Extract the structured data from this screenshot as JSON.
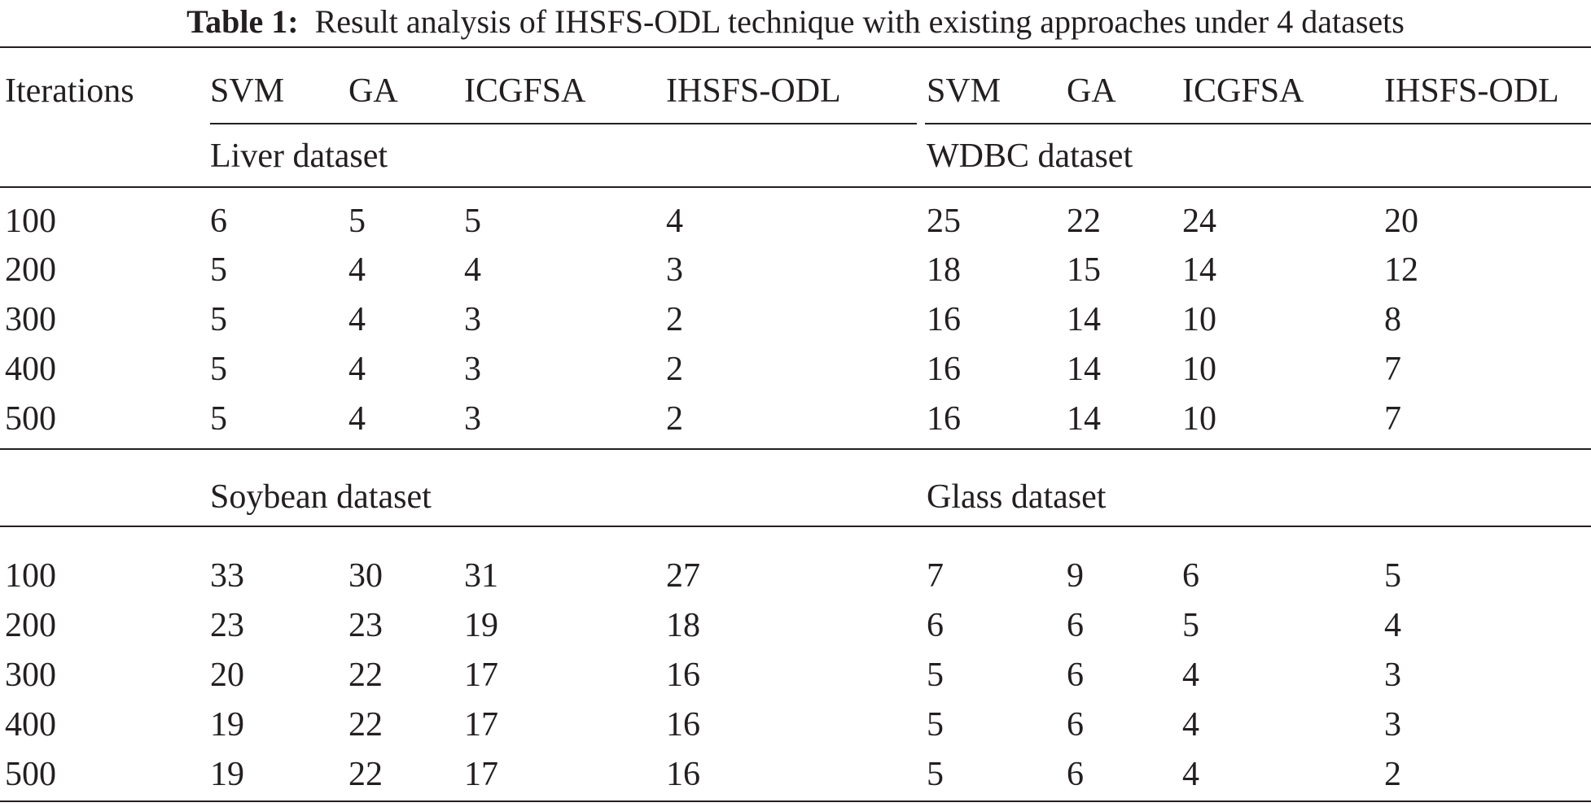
{
  "caption": {
    "label": "Table 1:",
    "text": "Result analysis of IHSFS-ODL technique with existing approaches under 4 datasets"
  },
  "header": {
    "first": "Iterations",
    "columns": [
      "SVM",
      "GA",
      "ICGFSA",
      "IHSFS-ODL",
      "SVM",
      "GA",
      "ICGFSA",
      "IHSFS-ODL"
    ]
  },
  "groups": [
    {
      "left_title": "Liver dataset",
      "right_title": "WDBC dataset",
      "rows": [
        [
          "100",
          "6",
          "5",
          "5",
          "4",
          "25",
          "22",
          "24",
          "20"
        ],
        [
          "200",
          "5",
          "4",
          "4",
          "3",
          "18",
          "15",
          "14",
          "12"
        ],
        [
          "300",
          "5",
          "4",
          "3",
          "2",
          "16",
          "14",
          "10",
          "8"
        ],
        [
          "400",
          "5",
          "4",
          "3",
          "2",
          "16",
          "14",
          "10",
          "7"
        ],
        [
          "500",
          "5",
          "4",
          "3",
          "2",
          "16",
          "14",
          "10",
          "7"
        ]
      ]
    },
    {
      "left_title": "Soybean dataset",
      "right_title": "Glass dataset",
      "rows": [
        [
          "100",
          "33",
          "30",
          "31",
          "27",
          "7",
          "9",
          "6",
          "5"
        ],
        [
          "200",
          "23",
          "23",
          "19",
          "18",
          "6",
          "6",
          "5",
          "4"
        ],
        [
          "300",
          "20",
          "22",
          "17",
          "16",
          "5",
          "6",
          "4",
          "3"
        ],
        [
          "400",
          "19",
          "22",
          "17",
          "16",
          "5",
          "6",
          "4",
          "3"
        ],
        [
          "500",
          "19",
          "22",
          "17",
          "16",
          "5",
          "6",
          "4",
          "2"
        ]
      ]
    }
  ]
}
